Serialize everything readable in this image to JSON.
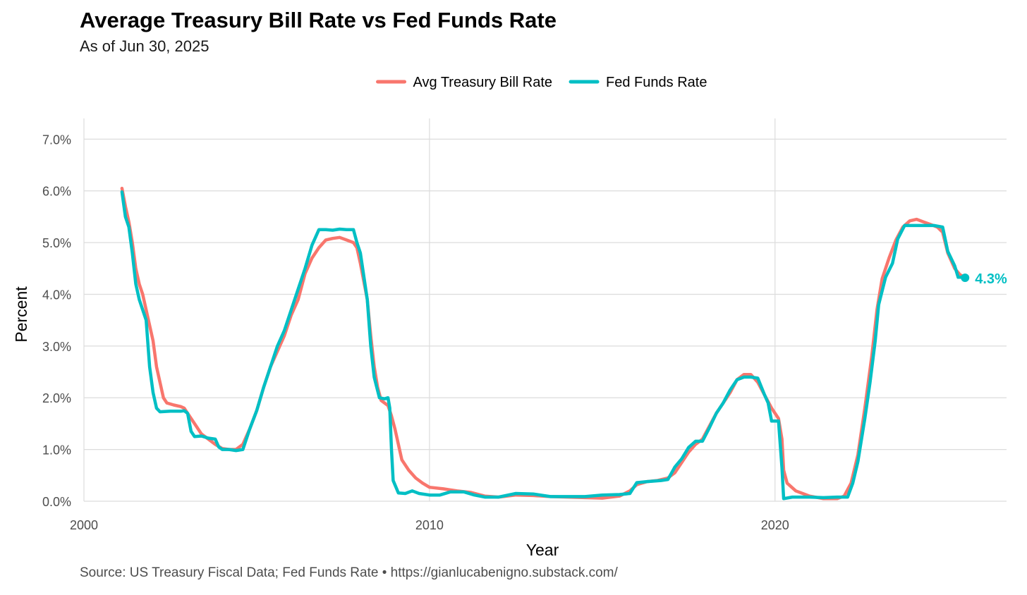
{
  "chart_data": {
    "type": "line",
    "title": "Average Treasury Bill Rate vs Fed Funds Rate",
    "subtitle": "As of Jun 30, 2025",
    "xlabel": "Year",
    "ylabel": "Percent",
    "caption": "Source: US Treasury Fiscal Data; Fed Funds Rate • https://gianlucabenigno.substack.com/",
    "xlim": [
      2000,
      2026.7
    ],
    "ylim": [
      0,
      7.4
    ],
    "x_ticks": [
      2000,
      2010,
      2020
    ],
    "x_tick_labels": [
      "2000",
      "2010",
      "2020"
    ],
    "y_ticks": [
      0,
      1,
      2,
      3,
      4,
      5,
      6,
      7
    ],
    "y_tick_labels": [
      "0.0%",
      "1.0%",
      "2.0%",
      "3.0%",
      "4.0%",
      "5.0%",
      "6.0%",
      "7.0%"
    ],
    "grid": true,
    "legend_position": "top",
    "end_label": "4.3%",
    "end_point": {
      "x": 2025.5,
      "y": 4.32
    },
    "series": [
      {
        "name": "Avg Treasury Bill Rate",
        "color": "#F8766D",
        "points": [
          [
            2001.1,
            6.05
          ],
          [
            2001.2,
            5.7
          ],
          [
            2001.3,
            5.4
          ],
          [
            2001.4,
            5.0
          ],
          [
            2001.5,
            4.5
          ],
          [
            2001.6,
            4.2
          ],
          [
            2001.7,
            4.0
          ],
          [
            2001.8,
            3.7
          ],
          [
            2001.9,
            3.4
          ],
          [
            2002.0,
            3.1
          ],
          [
            2002.1,
            2.6
          ],
          [
            2002.2,
            2.3
          ],
          [
            2002.3,
            2.0
          ],
          [
            2002.4,
            1.9
          ],
          [
            2002.6,
            1.86
          ],
          [
            2002.8,
            1.83
          ],
          [
            2002.9,
            1.8
          ],
          [
            2003.0,
            1.7
          ],
          [
            2003.2,
            1.5
          ],
          [
            2003.4,
            1.3
          ],
          [
            2003.6,
            1.2
          ],
          [
            2003.8,
            1.1
          ],
          [
            2004.0,
            1.02
          ],
          [
            2004.2,
            1.0
          ],
          [
            2004.4,
            1.0
          ],
          [
            2004.6,
            1.1
          ],
          [
            2004.8,
            1.4
          ],
          [
            2005.0,
            1.75
          ],
          [
            2005.2,
            2.2
          ],
          [
            2005.4,
            2.6
          ],
          [
            2005.6,
            2.9
          ],
          [
            2005.8,
            3.2
          ],
          [
            2006.0,
            3.6
          ],
          [
            2006.2,
            3.9
          ],
          [
            2006.4,
            4.4
          ],
          [
            2006.6,
            4.7
          ],
          [
            2006.8,
            4.9
          ],
          [
            2007.0,
            5.05
          ],
          [
            2007.2,
            5.08
          ],
          [
            2007.4,
            5.1
          ],
          [
            2007.6,
            5.05
          ],
          [
            2007.8,
            5.0
          ],
          [
            2007.9,
            4.9
          ],
          [
            2008.0,
            4.6
          ],
          [
            2008.2,
            3.9
          ],
          [
            2008.3,
            3.2
          ],
          [
            2008.4,
            2.6
          ],
          [
            2008.5,
            2.2
          ],
          [
            2008.6,
            1.95
          ],
          [
            2008.8,
            1.85
          ],
          [
            2008.9,
            1.65
          ],
          [
            2009.0,
            1.4
          ],
          [
            2009.1,
            1.1
          ],
          [
            2009.2,
            0.8
          ],
          [
            2009.4,
            0.6
          ],
          [
            2009.6,
            0.45
          ],
          [
            2009.8,
            0.35
          ],
          [
            2010.0,
            0.27
          ],
          [
            2010.4,
            0.24
          ],
          [
            2010.8,
            0.2
          ],
          [
            2011.2,
            0.17
          ],
          [
            2011.6,
            0.1
          ],
          [
            2012.0,
            0.08
          ],
          [
            2012.5,
            0.12
          ],
          [
            2013.0,
            0.11
          ],
          [
            2013.5,
            0.09
          ],
          [
            2014.0,
            0.08
          ],
          [
            2014.5,
            0.07
          ],
          [
            2015.0,
            0.06
          ],
          [
            2015.5,
            0.1
          ],
          [
            2015.8,
            0.2
          ],
          [
            2016.0,
            0.32
          ],
          [
            2016.3,
            0.38
          ],
          [
            2016.6,
            0.4
          ],
          [
            2016.9,
            0.45
          ],
          [
            2017.1,
            0.55
          ],
          [
            2017.3,
            0.75
          ],
          [
            2017.5,
            0.95
          ],
          [
            2017.7,
            1.1
          ],
          [
            2017.9,
            1.2
          ],
          [
            2018.1,
            1.45
          ],
          [
            2018.3,
            1.7
          ],
          [
            2018.5,
            1.9
          ],
          [
            2018.7,
            2.1
          ],
          [
            2018.9,
            2.35
          ],
          [
            2019.1,
            2.45
          ],
          [
            2019.3,
            2.45
          ],
          [
            2019.5,
            2.3
          ],
          [
            2019.7,
            2.05
          ],
          [
            2019.9,
            1.8
          ],
          [
            2020.1,
            1.6
          ],
          [
            2020.2,
            1.2
          ],
          [
            2020.25,
            0.6
          ],
          [
            2020.35,
            0.35
          ],
          [
            2020.6,
            0.2
          ],
          [
            2021.0,
            0.1
          ],
          [
            2021.4,
            0.05
          ],
          [
            2021.8,
            0.05
          ],
          [
            2022.0,
            0.1
          ],
          [
            2022.2,
            0.35
          ],
          [
            2022.4,
            0.9
          ],
          [
            2022.6,
            1.8
          ],
          [
            2022.8,
            2.8
          ],
          [
            2022.95,
            3.7
          ],
          [
            2023.1,
            4.3
          ],
          [
            2023.3,
            4.7
          ],
          [
            2023.5,
            5.05
          ],
          [
            2023.7,
            5.3
          ],
          [
            2023.9,
            5.42
          ],
          [
            2024.1,
            5.45
          ],
          [
            2024.3,
            5.4
          ],
          [
            2024.5,
            5.35
          ],
          [
            2024.7,
            5.3
          ],
          [
            2024.85,
            5.2
          ],
          [
            2025.0,
            4.8
          ],
          [
            2025.2,
            4.5
          ],
          [
            2025.35,
            4.38
          ],
          [
            2025.5,
            4.32
          ]
        ]
      },
      {
        "name": "Fed Funds Rate",
        "color": "#00BFC4",
        "points": [
          [
            2001.1,
            5.98
          ],
          [
            2001.2,
            5.5
          ],
          [
            2001.3,
            5.3
          ],
          [
            2001.4,
            4.8
          ],
          [
            2001.5,
            4.2
          ],
          [
            2001.6,
            3.9
          ],
          [
            2001.7,
            3.7
          ],
          [
            2001.8,
            3.5
          ],
          [
            2001.9,
            2.6
          ],
          [
            2002.0,
            2.1
          ],
          [
            2002.1,
            1.8
          ],
          [
            2002.2,
            1.73
          ],
          [
            2002.5,
            1.74
          ],
          [
            2002.8,
            1.74
          ],
          [
            2002.9,
            1.75
          ],
          [
            2003.0,
            1.7
          ],
          [
            2003.1,
            1.35
          ],
          [
            2003.2,
            1.25
          ],
          [
            2003.4,
            1.26
          ],
          [
            2003.6,
            1.22
          ],
          [
            2003.8,
            1.2
          ],
          [
            2003.9,
            1.05
          ],
          [
            2004.0,
            1.0
          ],
          [
            2004.2,
            1.0
          ],
          [
            2004.4,
            0.98
          ],
          [
            2004.6,
            1.0
          ],
          [
            2004.8,
            1.4
          ],
          [
            2005.0,
            1.75
          ],
          [
            2005.2,
            2.2
          ],
          [
            2005.4,
            2.6
          ],
          [
            2005.6,
            3.0
          ],
          [
            2005.8,
            3.3
          ],
          [
            2006.0,
            3.7
          ],
          [
            2006.2,
            4.1
          ],
          [
            2006.4,
            4.5
          ],
          [
            2006.6,
            4.95
          ],
          [
            2006.8,
            5.25
          ],
          [
            2007.0,
            5.25
          ],
          [
            2007.2,
            5.24
          ],
          [
            2007.4,
            5.26
          ],
          [
            2007.6,
            5.25
          ],
          [
            2007.8,
            5.25
          ],
          [
            2007.9,
            5.0
          ],
          [
            2008.0,
            4.8
          ],
          [
            2008.2,
            3.9
          ],
          [
            2008.3,
            3.0
          ],
          [
            2008.4,
            2.4
          ],
          [
            2008.55,
            2.0
          ],
          [
            2008.7,
            1.98
          ],
          [
            2008.8,
            2.0
          ],
          [
            2008.85,
            1.8
          ],
          [
            2008.9,
            1.0
          ],
          [
            2008.95,
            0.4
          ],
          [
            2009.1,
            0.16
          ],
          [
            2009.3,
            0.15
          ],
          [
            2009.5,
            0.2
          ],
          [
            2009.7,
            0.15
          ],
          [
            2010.0,
            0.12
          ],
          [
            2010.3,
            0.12
          ],
          [
            2010.6,
            0.18
          ],
          [
            2011.0,
            0.18
          ],
          [
            2011.3,
            0.12
          ],
          [
            2011.6,
            0.08
          ],
          [
            2012.0,
            0.08
          ],
          [
            2012.5,
            0.15
          ],
          [
            2013.0,
            0.14
          ],
          [
            2013.5,
            0.09
          ],
          [
            2014.0,
            0.09
          ],
          [
            2014.5,
            0.09
          ],
          [
            2015.0,
            0.12
          ],
          [
            2015.5,
            0.13
          ],
          [
            2015.8,
            0.15
          ],
          [
            2016.0,
            0.36
          ],
          [
            2016.3,
            0.38
          ],
          [
            2016.7,
            0.4
          ],
          [
            2016.9,
            0.42
          ],
          [
            2017.1,
            0.66
          ],
          [
            2017.3,
            0.82
          ],
          [
            2017.5,
            1.04
          ],
          [
            2017.7,
            1.16
          ],
          [
            2017.9,
            1.16
          ],
          [
            2018.1,
            1.42
          ],
          [
            2018.3,
            1.7
          ],
          [
            2018.5,
            1.9
          ],
          [
            2018.7,
            2.15
          ],
          [
            2018.9,
            2.35
          ],
          [
            2019.1,
            2.4
          ],
          [
            2019.3,
            2.4
          ],
          [
            2019.5,
            2.38
          ],
          [
            2019.7,
            2.05
          ],
          [
            2019.8,
            1.9
          ],
          [
            2019.9,
            1.55
          ],
          [
            2020.1,
            1.55
          ],
          [
            2020.2,
            0.65
          ],
          [
            2020.25,
            0.05
          ],
          [
            2020.5,
            0.08
          ],
          [
            2021.0,
            0.08
          ],
          [
            2021.4,
            0.07
          ],
          [
            2021.8,
            0.08
          ],
          [
            2022.1,
            0.08
          ],
          [
            2022.25,
            0.35
          ],
          [
            2022.4,
            0.77
          ],
          [
            2022.6,
            1.6
          ],
          [
            2022.75,
            2.3
          ],
          [
            2022.9,
            3.1
          ],
          [
            2023.0,
            3.8
          ],
          [
            2023.2,
            4.33
          ],
          [
            2023.4,
            4.6
          ],
          [
            2023.55,
            5.07
          ],
          [
            2023.75,
            5.33
          ],
          [
            2024.0,
            5.33
          ],
          [
            2024.3,
            5.33
          ],
          [
            2024.6,
            5.33
          ],
          [
            2024.85,
            5.3
          ],
          [
            2025.0,
            4.83
          ],
          [
            2025.2,
            4.55
          ],
          [
            2025.3,
            4.33
          ],
          [
            2025.5,
            4.33
          ]
        ]
      }
    ]
  }
}
